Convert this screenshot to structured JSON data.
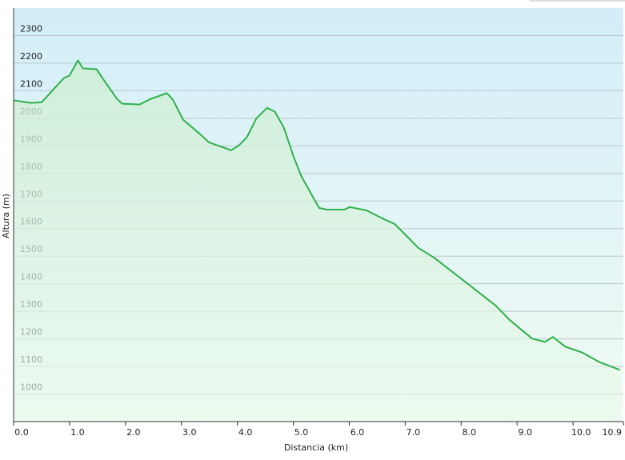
{
  "chart_data": {
    "type": "area",
    "x_label": "Distancia  (km)",
    "y_label": "Altura (m)",
    "color": "#2eb04b",
    "grid": true,
    "xlim": [
      0,
      10.9
    ],
    "ylim": [
      900,
      2400
    ],
    "xticks": [
      {
        "value": 0,
        "label": "0.0"
      },
      {
        "value": 1,
        "label": "1.0"
      },
      {
        "value": 2,
        "label": "2.0"
      },
      {
        "value": 3,
        "label": "3.0"
      },
      {
        "value": 4,
        "label": "4.0"
      },
      {
        "value": 5,
        "label": "5.0"
      },
      {
        "value": 6,
        "label": "6.0"
      },
      {
        "value": 7,
        "label": "7.0"
      },
      {
        "value": 8,
        "label": "8.0"
      },
      {
        "value": 9,
        "label": "9.0"
      },
      {
        "value": 10,
        "label": "10.0"
      },
      10.9
    ],
    "yticks": [
      1000,
      1100,
      1200,
      1300,
      1400,
      1500,
      1600,
      1700,
      1800,
      1900,
      2000,
      2100,
      2200,
      2300
    ],
    "x": [
      0,
      0.31,
      0.5,
      0.7,
      0.9,
      1.0,
      1.15,
      1.24,
      1.48,
      1.65,
      1.85,
      1.94,
      2.25,
      2.45,
      2.74,
      2.85,
      3.03,
      3.32,
      3.49,
      3.89,
      4.03,
      4.17,
      4.34,
      4.53,
      4.67,
      4.83,
      5.0,
      5.14,
      5.46,
      5.6,
      5.91,
      6.01,
      6.31,
      6.62,
      6.81,
      7.24,
      7.52,
      7.85,
      8.13,
      8.62,
      8.87,
      9.27,
      9.5,
      9.64,
      9.86,
      10.16,
      10.47,
      10.84
    ],
    "values": [
      2065,
      2056,
      2058,
      2102,
      2146,
      2155,
      2210,
      2181,
      2178,
      2128,
      2070,
      2053,
      2050,
      2070,
      2091,
      2067,
      1995,
      1945,
      1913,
      1884,
      1902,
      1931,
      2000,
      2038,
      2024,
      1966,
      1864,
      1791,
      1675,
      1669,
      1669,
      1678,
      1666,
      1634,
      1617,
      1529,
      1494,
      1442,
      1398,
      1320,
      1268,
      1201,
      1189,
      1207,
      1172,
      1151,
      1116,
      1087
    ]
  }
}
